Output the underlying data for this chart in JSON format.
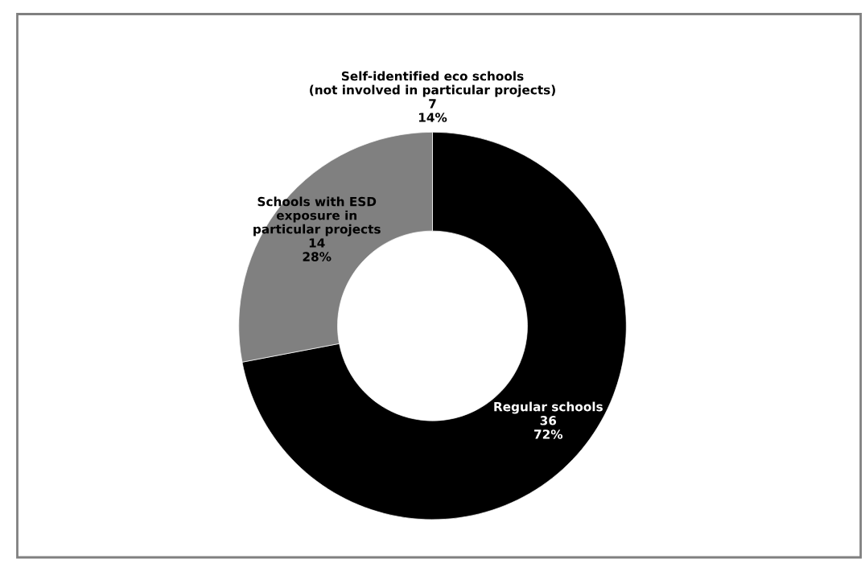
{
  "chart_data": {
    "type": "donut",
    "categories": [
      "Regular schools",
      "Schools with ESD\nexposure in\nparticular projects"
    ],
    "values": [
      36,
      14
    ],
    "colors": [
      "#000000",
      "#808080"
    ],
    "value_labels": [
      "36\n72%",
      "14\n28%"
    ],
    "annotations": [
      "Self-identified eco schools\n(not involved in particular projects)\n7\n14%"
    ],
    "legend": false
  }
}
